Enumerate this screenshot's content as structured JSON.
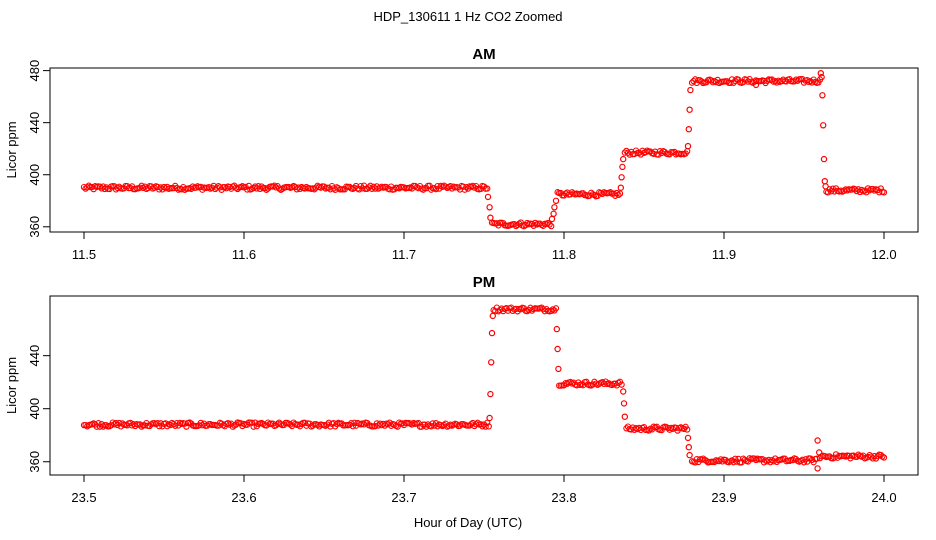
{
  "figure": {
    "title": "HDP_130611  1 Hz CO2 Zoomed",
    "xlabel": "Hour of Day (UTC)"
  },
  "colors": {
    "points": "#ff0000",
    "axis": "#000000"
  },
  "chart_data": [
    {
      "type": "scatter",
      "title": "AM",
      "xlabel": "",
      "ylabel": "Licor ppm",
      "xlim": [
        11.5,
        12.0
      ],
      "ylim": [
        356,
        482
      ],
      "xticks": [
        11.5,
        11.6,
        11.7,
        11.8,
        11.9,
        12.0
      ],
      "xtick_labels": [
        "11.5",
        "11.6",
        "11.7",
        "11.8",
        "11.9",
        "12.0"
      ],
      "yticks": [
        360,
        400,
        440,
        480
      ],
      "ytick_labels": [
        "360",
        "400",
        "440",
        "480"
      ],
      "grid": false,
      "segments": [
        {
          "x_start": 11.5,
          "x_end": 11.752,
          "y": 390
        },
        {
          "x_start": 11.755,
          "x_end": 11.792,
          "y": 362
        },
        {
          "x_start": 11.796,
          "x_end": 11.835,
          "y": 385
        },
        {
          "x_start": 11.838,
          "x_end": 11.877,
          "y": 417
        },
        {
          "x_start": 11.88,
          "x_end": 11.96,
          "y": 472
        },
        {
          "x_start": 11.964,
          "x_end": 12.0,
          "y": 388
        }
      ],
      "transition_points": [
        {
          "x": 11.7525,
          "y": 383
        },
        {
          "x": 11.7535,
          "y": 375
        },
        {
          "x": 11.754,
          "y": 367
        },
        {
          "x": 11.7925,
          "y": 366
        },
        {
          "x": 11.7935,
          "y": 370
        },
        {
          "x": 11.794,
          "y": 375
        },
        {
          "x": 11.795,
          "y": 380
        },
        {
          "x": 11.8355,
          "y": 390
        },
        {
          "x": 11.836,
          "y": 398
        },
        {
          "x": 11.8365,
          "y": 406
        },
        {
          "x": 11.837,
          "y": 412
        },
        {
          "x": 11.8775,
          "y": 422
        },
        {
          "x": 11.878,
          "y": 435
        },
        {
          "x": 11.8785,
          "y": 450
        },
        {
          "x": 11.879,
          "y": 465
        },
        {
          "x": 11.92,
          "y": 469
        },
        {
          "x": 11.9605,
          "y": 478
        },
        {
          "x": 11.961,
          "y": 475
        },
        {
          "x": 11.9615,
          "y": 461
        },
        {
          "x": 11.962,
          "y": 438
        },
        {
          "x": 11.9625,
          "y": 412
        },
        {
          "x": 11.963,
          "y": 395
        },
        {
          "x": 11.9635,
          "y": 391
        }
      ]
    },
    {
      "type": "scatter",
      "title": "PM",
      "xlabel": "",
      "ylabel": "Licor ppm",
      "xlim": [
        23.5,
        24.0
      ],
      "ylim": [
        350,
        485
      ],
      "xticks": [
        23.5,
        23.6,
        23.7,
        23.8,
        23.9,
        24.0
      ],
      "xtick_labels": [
        "23.5",
        "23.6",
        "23.7",
        "23.8",
        "23.9",
        "24.0"
      ],
      "yticks": [
        360,
        400,
        440
      ],
      "ytick_labels": [
        "360",
        "400",
        "440"
      ],
      "grid": false,
      "segments": [
        {
          "x_start": 23.5,
          "x_end": 23.753,
          "y": 388
        },
        {
          "x_start": 23.756,
          "x_end": 23.795,
          "y": 475
        },
        {
          "x_start": 23.797,
          "x_end": 23.836,
          "y": 419
        },
        {
          "x_start": 23.839,
          "x_end": 23.877,
          "y": 385
        },
        {
          "x_start": 23.88,
          "x_end": 23.958,
          "y": 361
        },
        {
          "x_start": 23.96,
          "x_end": 24.0,
          "y": 364
        }
      ],
      "transition_points": [
        {
          "x": 23.7535,
          "y": 393
        },
        {
          "x": 23.754,
          "y": 411
        },
        {
          "x": 23.7545,
          "y": 435
        },
        {
          "x": 23.755,
          "y": 457
        },
        {
          "x": 23.7555,
          "y": 470
        },
        {
          "x": 23.7955,
          "y": 460
        },
        {
          "x": 23.796,
          "y": 445
        },
        {
          "x": 23.7965,
          "y": 430
        },
        {
          "x": 23.837,
          "y": 413
        },
        {
          "x": 23.8375,
          "y": 404
        },
        {
          "x": 23.838,
          "y": 394
        },
        {
          "x": 23.8775,
          "y": 378
        },
        {
          "x": 23.878,
          "y": 371
        },
        {
          "x": 23.8785,
          "y": 365
        },
        {
          "x": 23.9585,
          "y": 376
        },
        {
          "x": 23.9585,
          "y": 355
        },
        {
          "x": 23.9595,
          "y": 367
        }
      ]
    }
  ]
}
